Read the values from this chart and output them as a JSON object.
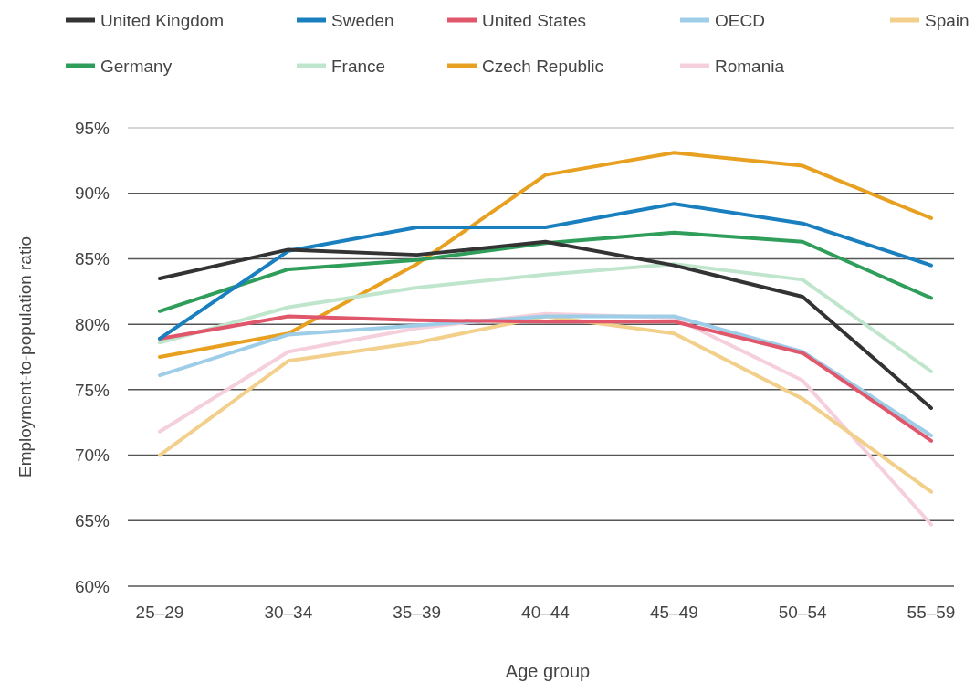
{
  "chart_data": {
    "type": "line",
    "xlabel": "Age group",
    "ylabel": "Employment-to-population ratio",
    "categories": [
      "25–29",
      "30–34",
      "35–39",
      "40–44",
      "45–49",
      "50–54",
      "55–59"
    ],
    "ylim": [
      60,
      95
    ],
    "yticks": [
      {
        "value": 60,
        "label": "60%"
      },
      {
        "value": 65,
        "label": "65%"
      },
      {
        "value": 70,
        "label": "70%"
      },
      {
        "value": 75,
        "label": "75%"
      },
      {
        "value": 80,
        "label": "80%"
      },
      {
        "value": 85,
        "label": "85%"
      },
      {
        "value": 90,
        "label": "90%"
      },
      {
        "value": 95,
        "label": "95%"
      }
    ],
    "grid": "y",
    "legend": "top",
    "marker": "none",
    "line_style": "solid",
    "series": [
      {
        "name": "United Kingdom",
        "color": "#333333",
        "values": [
          83.5,
          85.7,
          85.3,
          86.3,
          84.5,
          82.1,
          73.6
        ]
      },
      {
        "name": "Sweden",
        "color": "#1a7fbf",
        "values": [
          78.9,
          85.6,
          87.4,
          87.4,
          89.2,
          87.7,
          84.5
        ]
      },
      {
        "name": "United States",
        "color": "#e0566b",
        "values": [
          78.9,
          80.6,
          80.3,
          80.2,
          80.2,
          77.8,
          71.1
        ]
      },
      {
        "name": "OECD",
        "color": "#9ecde8",
        "values": [
          76.1,
          79.2,
          79.9,
          80.6,
          80.6,
          77.9,
          71.5
        ]
      },
      {
        "name": "Spain",
        "color": "#f2cf8a",
        "values": [
          70.0,
          77.2,
          78.6,
          80.6,
          79.3,
          74.3,
          67.2
        ]
      },
      {
        "name": "Germany",
        "color": "#2e9e5a",
        "values": [
          81.0,
          84.2,
          84.9,
          86.2,
          87.0,
          86.3,
          82.0
        ]
      },
      {
        "name": "France",
        "color": "#bfe6cc",
        "values": [
          78.6,
          81.3,
          82.8,
          83.8,
          84.6,
          83.4,
          76.4
        ]
      },
      {
        "name": "Czech Republic",
        "color": "#e8a020",
        "values": [
          77.5,
          79.3,
          84.6,
          91.4,
          93.1,
          92.1,
          88.1
        ]
      },
      {
        "name": "Romania",
        "color": "#f5d0dc",
        "values": [
          71.8,
          77.9,
          79.7,
          80.8,
          80.5,
          75.7,
          64.7
        ]
      }
    ]
  }
}
